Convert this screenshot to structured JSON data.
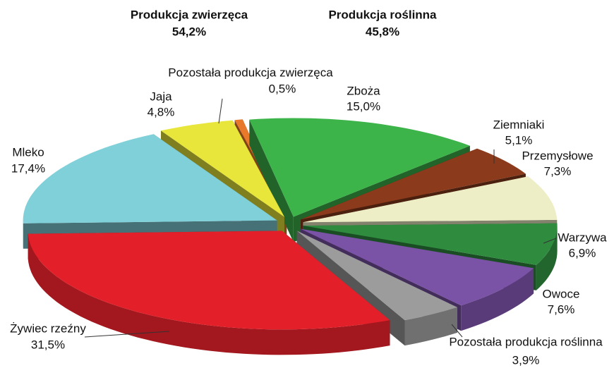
{
  "chart_data": {
    "type": "pie3d",
    "annotations": [
      {
        "text": "Produkcja zwierzęca",
        "subtext": "54,2%"
      },
      {
        "text": "Produkcja roślinna",
        "subtext": "45,8%"
      }
    ],
    "categories": [
      "Zboża",
      "Ziemniaki",
      "Przemysłowe",
      "Warzywa",
      "Owoce",
      "Pozostała produkcja roślinna",
      "Żywiec rzeźny",
      "Mleko",
      "Jaja",
      "Pozostała produkcja zwierzęca"
    ],
    "values": [
      15.0,
      5.1,
      7.3,
      6.9,
      7.6,
      3.9,
      31.5,
      17.4,
      4.8,
      0.5
    ],
    "value_labels": [
      "15,0%",
      "5,1%",
      "7,3%",
      "6,9%",
      "7,6%",
      "3,9%",
      "31,5%",
      "17,4%",
      "4,8%",
      "0,5%"
    ],
    "colors": [
      "#3cb44a",
      "#8b3b1b",
      "#eeeec6",
      "#2f8c3f",
      "#7a52a6",
      "#9c9c9c",
      "#e3202a",
      "#7fd0d8",
      "#e8e63a",
      "#e8782a"
    ]
  }
}
